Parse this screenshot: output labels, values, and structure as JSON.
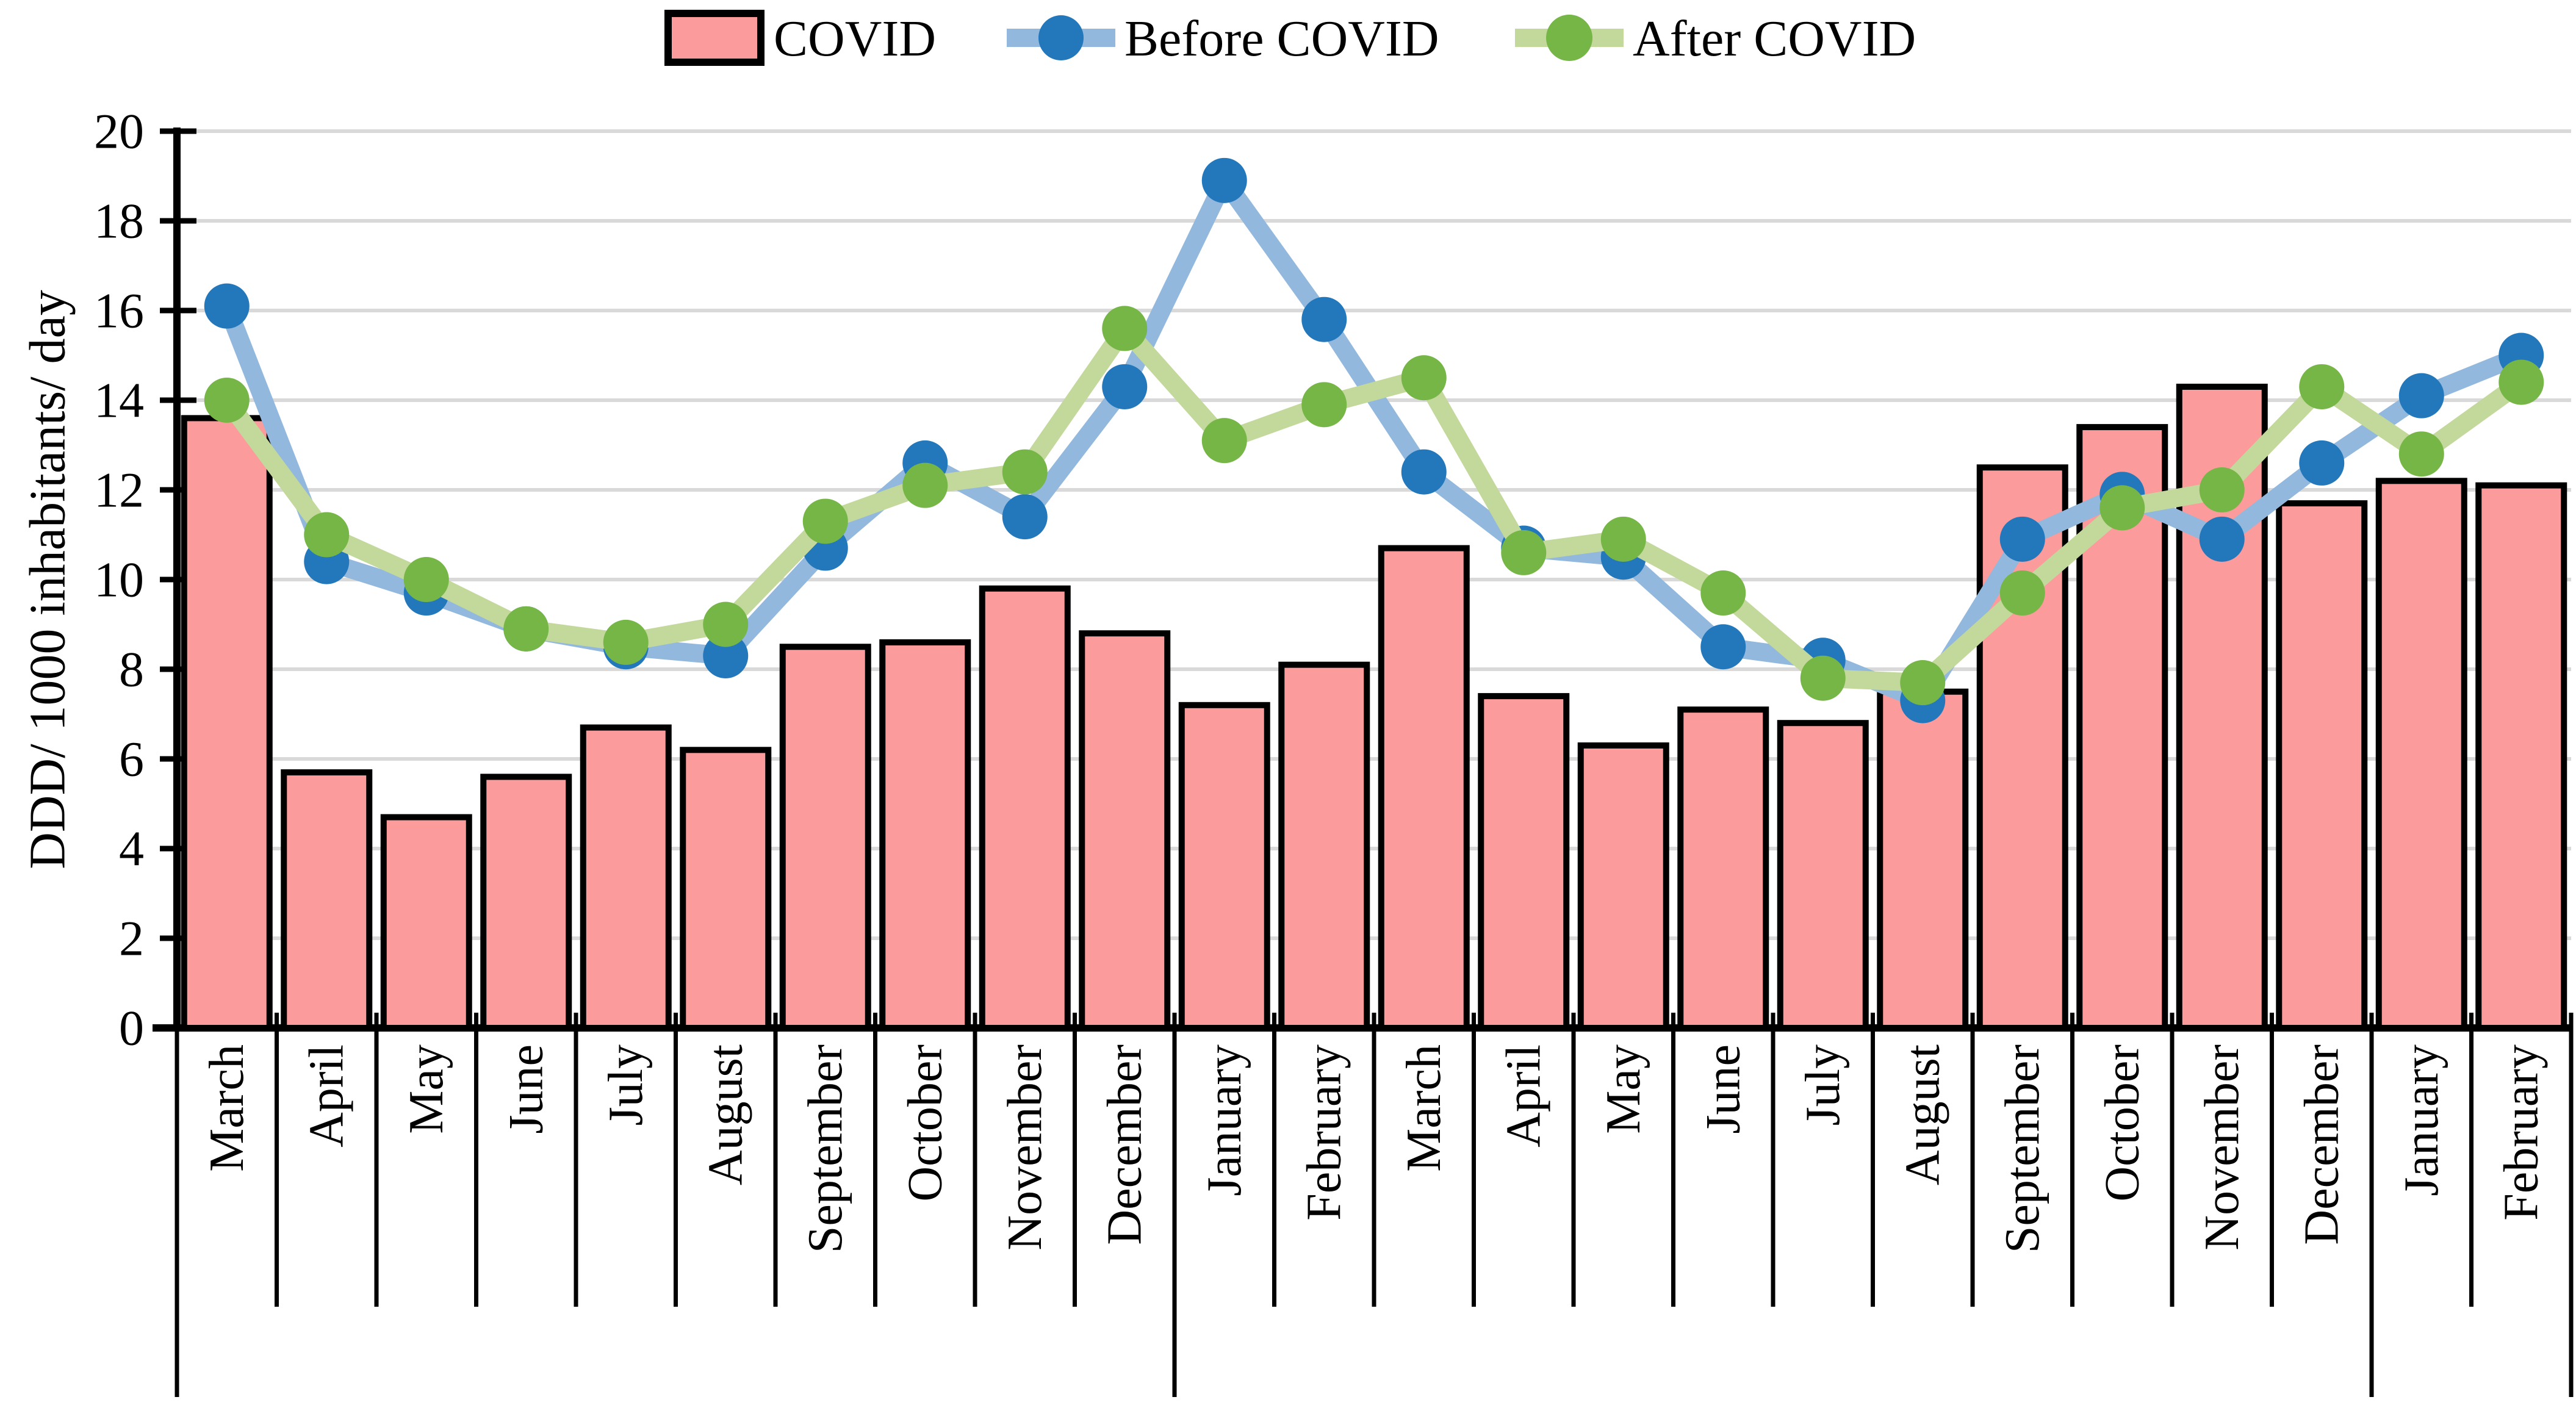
{
  "figure": {
    "background": "#FFFFFF"
  },
  "y_axis": {
    "title": "DDD/ 1000 inhabitants/ day",
    "min": 0,
    "max": 20,
    "tick_step": 2,
    "tick_labels": [
      "0",
      "2",
      "4",
      "6",
      "8",
      "10",
      "12",
      "14",
      "16",
      "18",
      "20"
    ]
  },
  "x_axis": {
    "labels": [
      "March",
      "April",
      "May",
      "June",
      "July",
      "August",
      "September",
      "October",
      "November",
      "December",
      "January",
      "February",
      "March",
      "April",
      "May",
      "June",
      "July",
      "August",
      "September",
      "October",
      "November",
      "December",
      "January",
      "February"
    ],
    "year_group_boundaries_after_slot": [
      0,
      10,
      22,
      24
    ]
  },
  "legend": {
    "position": "top",
    "items": [
      "COVID",
      "Before COVID",
      "After COVID"
    ]
  },
  "colors": {
    "bar_fill": "#FB9B9B",
    "bar_border": "#000000",
    "before_line": "#92B8DD",
    "before_marker": "#2378BC",
    "after_line": "#C3D89B",
    "after_marker": "#76B647",
    "gridline": "#D9D9D9",
    "axis": "#000000",
    "text": "#000000"
  },
  "chart_data": {
    "type": "bar",
    "subtype": "combo-bar-and-lines",
    "title": "",
    "xlabel": "",
    "ylabel": "DDD/ 1000 inhabitants/ day",
    "ylim": [
      0,
      20
    ],
    "ytick_step": 2,
    "grid": true,
    "legend_position": "top",
    "categories": [
      "March",
      "April",
      "May",
      "June",
      "July",
      "August",
      "September",
      "October",
      "November",
      "December",
      "January",
      "February",
      "March",
      "April",
      "May",
      "June",
      "July",
      "August",
      "September",
      "October",
      "November",
      "December",
      "January",
      "February"
    ],
    "series": [
      {
        "name": "COVID",
        "kind": "bar",
        "fill": "#FB9B9B",
        "border": "#000000",
        "values": [
          13.6,
          5.7,
          4.7,
          5.6,
          6.7,
          6.2,
          8.5,
          8.6,
          9.8,
          8.8,
          7.2,
          8.1,
          10.7,
          7.4,
          6.3,
          7.1,
          6.8,
          7.5,
          12.5,
          13.4,
          14.3,
          11.7,
          12.2,
          12.1
        ]
      },
      {
        "name": "Before COVID",
        "kind": "line",
        "line_color": "#92B8DD",
        "marker_color": "#2378BC",
        "values": [
          16.1,
          10.4,
          9.7,
          8.9,
          8.5,
          8.3,
          10.7,
          12.6,
          11.4,
          14.3,
          18.9,
          15.8,
          12.4,
          10.7,
          10.5,
          8.5,
          8.2,
          7.3,
          10.9,
          11.9,
          10.9,
          12.6,
          14.1,
          15.0
        ]
      },
      {
        "name": "After COVID",
        "kind": "line",
        "line_color": "#C3D89B",
        "marker_color": "#76B647",
        "values": [
          14.0,
          11.0,
          10.0,
          8.9,
          8.6,
          9.0,
          11.3,
          12.1,
          12.4,
          15.6,
          13.1,
          13.9,
          14.5,
          10.6,
          10.9,
          9.7,
          7.8,
          7.7,
          9.7,
          11.6,
          12.0,
          14.3,
          12.8,
          14.4
        ]
      }
    ]
  }
}
